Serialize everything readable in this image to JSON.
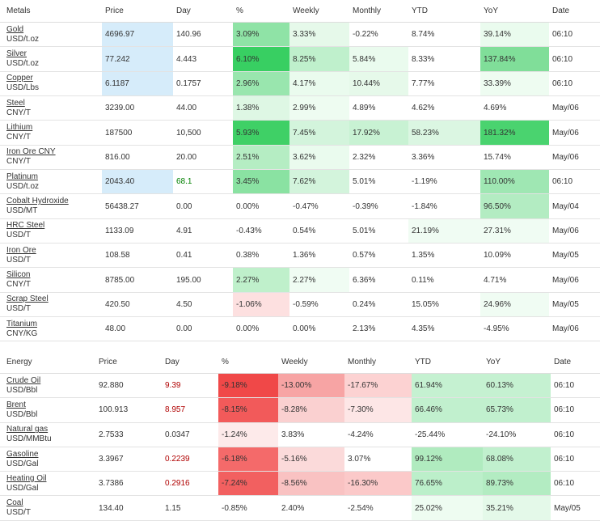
{
  "metals": {
    "columns": [
      "Metals",
      "Price",
      "Day",
      "%",
      "Weekly",
      "Monthly",
      "YTD",
      "YoY",
      "Date"
    ],
    "rows": [
      {
        "name": "Gold",
        "unit": "USD/t.oz",
        "price": "4696.97",
        "day": "140.96",
        "pct": "3.09%",
        "weekly": "3.33%",
        "monthly": "-0.22%",
        "ytd": "8.74%",
        "yoy": "39.14%",
        "date": "06:10",
        "priceBg": "#d6ecfa",
        "pctBg": "#8fe3a6",
        "weeklyBg": "#e6f9ea",
        "monthlyBg": "",
        "ytdBg": "",
        "yoyBg": "#eafbee"
      },
      {
        "name": "Silver",
        "unit": "USD/t.oz",
        "price": "77.242",
        "day": "4.443",
        "pct": "6.10%",
        "weekly": "8.25%",
        "monthly": "5.84%",
        "ytd": "8.33%",
        "yoy": "137.84%",
        "date": "06:10",
        "priceBg": "#d6ecfa",
        "pctBg": "#38cf62",
        "weeklyBg": "#bff0cc",
        "monthlyBg": "#eafbee",
        "ytdBg": "",
        "yoyBg": "#80de99"
      },
      {
        "name": "Copper",
        "unit": "USD/Lbs",
        "price": "6.1187",
        "day": "0.1757",
        "pct": "2.96%",
        "weekly": "4.17%",
        "monthly": "10.44%",
        "ytd": "7.77%",
        "yoy": "33.39%",
        "date": "06:10",
        "priceBg": "#d6ecfa",
        "pctBg": "#99e6ae",
        "weeklyBg": "#eafbee",
        "monthlyBg": "#e6f9ea",
        "ytdBg": "",
        "yoyBg": "#eefcf1"
      },
      {
        "name": "Steel",
        "unit": "CNY/T",
        "price": "3239.00",
        "day": "44.00",
        "pct": "1.38%",
        "weekly": "2.99%",
        "monthly": "4.89%",
        "ytd": "4.62%",
        "yoy": "4.69%",
        "date": "May/06",
        "priceBg": "",
        "pctBg": "#def7e4",
        "weeklyBg": "#eefcf1",
        "monthlyBg": "",
        "ytdBg": "",
        "yoyBg": ""
      },
      {
        "name": "Lithium",
        "unit": "CNY/T",
        "price": "187500",
        "day": "10,500",
        "pct": "5.93%",
        "weekly": "7.45%",
        "monthly": "17.92%",
        "ytd": "58.23%",
        "yoy": "181.32%",
        "date": "May/06",
        "priceBg": "",
        "pctBg": "#3fd066",
        "weeklyBg": "#d3f4dc",
        "monthlyBg": "#c8f2d3",
        "ytdBg": "#dbf6e2",
        "yoyBg": "#4ad36f"
      },
      {
        "name": "Iron Ore CNY",
        "unit": "CNY/T",
        "price": "816.00",
        "day": "20.00",
        "pct": "2.51%",
        "weekly": "3.62%",
        "monthly": "2.32%",
        "ytd": "3.36%",
        "yoy": "15.74%",
        "date": "May/06",
        "priceBg": "",
        "pctBg": "#b5edc3",
        "weeklyBg": "#eafbee",
        "monthlyBg": "",
        "ytdBg": "",
        "yoyBg": ""
      },
      {
        "name": "Platinum",
        "unit": "USD/t.oz",
        "price": "2043.40",
        "day": "68.1",
        "pct": "3.45%",
        "weekly": "7.62%",
        "monthly": "5.01%",
        "ytd": "-1.19%",
        "yoy": "110.00%",
        "date": "06:10",
        "priceBg": "#d6ecfa",
        "pctBg": "#8ae2a2",
        "weeklyBg": "#d3f4dc",
        "monthlyBg": "",
        "ytdBg": "",
        "yoyBg": "#9fe7b3"
      },
      {
        "name": "Cobalt Hydroxide",
        "unit": "USD/MT",
        "price": "56438.27",
        "day": "0.00",
        "pct": "0.00%",
        "weekly": "-0.47%",
        "monthly": "-0.39%",
        "ytd": "-1.84%",
        "yoy": "96.50%",
        "date": "May/04",
        "priceBg": "",
        "pctBg": "",
        "weeklyBg": "",
        "monthlyBg": "",
        "ytdBg": "",
        "yoyBg": "#b3ecc2"
      },
      {
        "name": "HRC Steel",
        "unit": "USD/T",
        "price": "1133.09",
        "day": "4.91",
        "pct": "-0.43%",
        "weekly": "0.54%",
        "monthly": "5.01%",
        "ytd": "21.19%",
        "yoy": "27.31%",
        "date": "May/06",
        "priceBg": "",
        "pctBg": "",
        "weeklyBg": "",
        "monthlyBg": "",
        "ytdBg": "#f0fcf3",
        "yoyBg": "#f0fcf3"
      },
      {
        "name": "Iron Ore",
        "unit": "USD/T",
        "price": "108.58",
        "day": "0.41",
        "pct": "0.38%",
        "weekly": "1.36%",
        "monthly": "0.57%",
        "ytd": "1.35%",
        "yoy": "10.09%",
        "date": "May/05",
        "priceBg": "",
        "pctBg": "",
        "weeklyBg": "",
        "monthlyBg": "",
        "ytdBg": "",
        "yoyBg": ""
      },
      {
        "name": "Silicon",
        "unit": "CNY/T",
        "price": "8785.00",
        "day": "195.00",
        "pct": "2.27%",
        "weekly": "2.27%",
        "monthly": "6.36%",
        "ytd": "0.11%",
        "yoy": "4.71%",
        "date": "May/06",
        "priceBg": "",
        "pctBg": "#bff0cb",
        "weeklyBg": "#f0fcf3",
        "monthlyBg": "",
        "ytdBg": "",
        "yoyBg": ""
      },
      {
        "name": "Scrap Steel",
        "unit": "USD/T",
        "price": "420.50",
        "day": "4.50",
        "pct": "-1.06%",
        "weekly": "-0.59%",
        "monthly": "0.24%",
        "ytd": "15.05%",
        "yoy": "24.96%",
        "date": "May/05",
        "priceBg": "",
        "pctBg": "#fde0e0",
        "weeklyBg": "",
        "monthlyBg": "",
        "ytdBg": "",
        "yoyBg": "#f0fcf3"
      },
      {
        "name": "Titanium",
        "unit": "CNY/KG",
        "price": "48.00",
        "day": "0.00",
        "pct": "0.00%",
        "weekly": "0.00%",
        "monthly": "2.13%",
        "ytd": "4.35%",
        "yoy": "-4.95%",
        "date": "May/06",
        "priceBg": "",
        "pctBg": "",
        "weeklyBg": "",
        "monthlyBg": "",
        "ytdBg": "",
        "yoyBg": ""
      }
    ]
  },
  "energy": {
    "columns": [
      "Energy",
      "Price",
      "Day",
      "%",
      "Weekly",
      "Monthly",
      "YTD",
      "YoY",
      "Date"
    ],
    "rows": [
      {
        "name": "Crude Oil",
        "unit": "USD/Bbl",
        "price": "92.880",
        "day": "9.39",
        "pct": "-9.18%",
        "weekly": "-13.00%",
        "monthly": "-17.67%",
        "ytd": "61.94%",
        "yoy": "60.13%",
        "date": "06:10",
        "dayNeg": true,
        "pctBg": "#f04848",
        "weeklyBg": "#f7a4a4",
        "monthlyBg": "#fcd2d2",
        "ytdBg": "#c5f1d1",
        "yoyBg": "#c5f1d1"
      },
      {
        "name": "Brent",
        "unit": "USD/Bbl",
        "price": "100.913",
        "day": "8.957",
        "pct": "-8.15%",
        "weekly": "-8.28%",
        "monthly": "-7.30%",
        "ytd": "66.46%",
        "yoy": "65.73%",
        "date": "06:10",
        "dayNeg": true,
        "pctBg": "#f25a5a",
        "weeklyBg": "#fad0d0",
        "monthlyBg": "#fde6e6",
        "ytdBg": "#c1f0ce",
        "yoyBg": "#c1f0ce"
      },
      {
        "name": "Natural gas",
        "unit": "USD/MMBtu",
        "price": "2.7533",
        "day": "0.0347",
        "pct": "-1.24%",
        "weekly": "3.83%",
        "monthly": "-4.24%",
        "ytd": "-25.44%",
        "yoy": "-24.10%",
        "date": "06:10",
        "dayNeg": false,
        "pctBg": "#fdeaea",
        "weeklyBg": "",
        "monthlyBg": "",
        "ytdBg": "",
        "yoyBg": ""
      },
      {
        "name": "Gasoline",
        "unit": "USD/Gal",
        "price": "3.3967",
        "day": "0.2239",
        "pct": "-6.18%",
        "weekly": "-5.16%",
        "monthly": "3.07%",
        "ytd": "99.12%",
        "yoy": "68.08%",
        "date": "06:10",
        "dayNeg": true,
        "pctBg": "#f46a6a",
        "weeklyBg": "#fbdada",
        "monthlyBg": "",
        "ytdBg": "#b0ebbf",
        "yoyBg": "#c1f0ce"
      },
      {
        "name": "Heating Oil",
        "unit": "USD/Gal",
        "price": "3.7386",
        "day": "0.2916",
        "pct": "-7.24%",
        "weekly": "-8.56%",
        "monthly": "-16.30%",
        "ytd": "76.65%",
        "yoy": "89.73%",
        "date": "06:10",
        "dayNeg": true,
        "pctBg": "#f26060",
        "weeklyBg": "#f9c2c2",
        "monthlyBg": "#fbc9c9",
        "ytdBg": "#bcefca",
        "yoyBg": "#b3ecc2"
      },
      {
        "name": "Coal",
        "unit": "USD/T",
        "price": "134.40",
        "day": "1.15",
        "pct": "-0.85%",
        "weekly": "2.40%",
        "monthly": "-2.54%",
        "ytd": "25.02%",
        "yoy": "35.21%",
        "date": "May/05",
        "dayNeg": false,
        "pctBg": "",
        "weeklyBg": "",
        "monthlyBg": "",
        "ytdBg": "#eefcf1",
        "yoyBg": "#e4f9e9"
      }
    ]
  }
}
